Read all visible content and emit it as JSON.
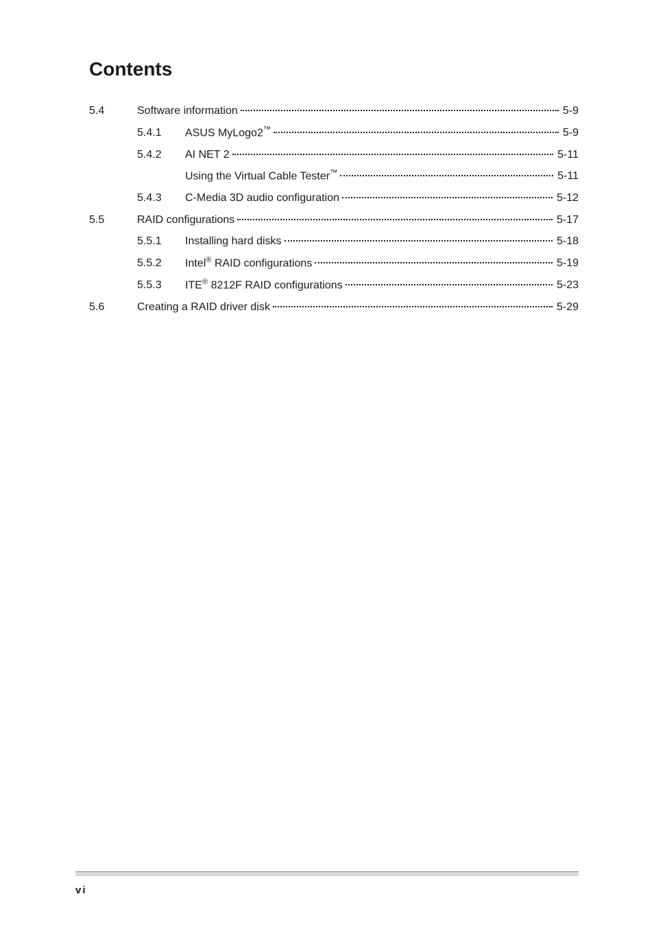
{
  "title": "Contents",
  "entries": [
    {
      "section": "5.4",
      "subsection": "",
      "indent": 0,
      "label": "Software information",
      "page": "5-9"
    },
    {
      "section": "",
      "subsection": "5.4.1",
      "indent": 1,
      "label": "ASUS MyLogo2™",
      "page": "5-9"
    },
    {
      "section": "",
      "subsection": "5.4.2",
      "indent": 1,
      "label": "AI NET 2",
      "page": "5-11"
    },
    {
      "section": "",
      "subsection": "",
      "indent": 1,
      "label": "Using the Virtual Cable Tester™",
      "page": "5-11"
    },
    {
      "section": "",
      "subsection": "5.4.3",
      "indent": 1,
      "label": "C-Media 3D audio configuration",
      "page": "5-12"
    },
    {
      "section": "5.5",
      "subsection": "",
      "indent": 0,
      "label": "RAID configurations",
      "page": "5-17"
    },
    {
      "section": "",
      "subsection": "5.5.1",
      "indent": 1,
      "label": "Installing hard disks",
      "page": "5-18"
    },
    {
      "section": "",
      "subsection": "5.5.2",
      "indent": 1,
      "label": "Intel® RAID configurations",
      "page": "5-19"
    },
    {
      "section": "",
      "subsection": "5.5.3",
      "indent": 1,
      "label": "ITE® 8212F RAID configurations",
      "page": "5-23"
    },
    {
      "section": "5.6",
      "subsection": "",
      "indent": 0,
      "label": "Creating a RAID driver disk",
      "page": "5-29"
    }
  ],
  "footer_page": "vi",
  "colors": {
    "text": "#1a1a1a",
    "background": "#ffffff",
    "footer_line_top": "#808080",
    "footer_line_bottom": "#b0b0b0"
  },
  "fonts": {
    "title_size": 28,
    "body_size": 16,
    "footer_size": 15
  }
}
